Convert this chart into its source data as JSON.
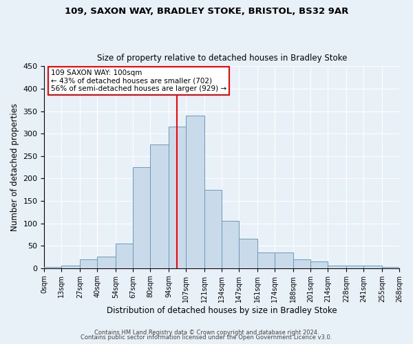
{
  "title1": "109, SAXON WAY, BRADLEY STOKE, BRISTOL, BS32 9AR",
  "title2": "Size of property relative to detached houses in Bradley Stoke",
  "xlabel": "Distribution of detached houses by size in Bradley Stoke",
  "ylabel": "Number of detached properties",
  "bar_color": "#c9daea",
  "bar_edge_color": "#6b9ab8",
  "bg_color": "#e8f0f8",
  "fig_bg_color": "#e8f0f8",
  "red_line_x": 100,
  "annotation_title": "109 SAXON WAY: 100sqm",
  "annotation_line1": "← 43% of detached houses are smaller (702)",
  "annotation_line2": "56% of semi-detached houses are larger (929) →",
  "bins": [
    0,
    13,
    27,
    40,
    54,
    67,
    80,
    94,
    107,
    121,
    134,
    147,
    161,
    174,
    188,
    201,
    214,
    228,
    241,
    255,
    268
  ],
  "bin_labels": [
    "0sqm",
    "13sqm",
    "27sqm",
    "40sqm",
    "54sqm",
    "67sqm",
    "80sqm",
    "94sqm",
    "107sqm",
    "121sqm",
    "134sqm",
    "147sqm",
    "161sqm",
    "174sqm",
    "188sqm",
    "201sqm",
    "214sqm",
    "228sqm",
    "241sqm",
    "255sqm",
    "268sqm"
  ],
  "counts": [
    2,
    5,
    20,
    25,
    55,
    225,
    275,
    315,
    340,
    175,
    105,
    65,
    35,
    35,
    20,
    15,
    5,
    5,
    5,
    2
  ],
  "ylim": [
    0,
    450
  ],
  "yticks": [
    0,
    50,
    100,
    150,
    200,
    250,
    300,
    350,
    400,
    450
  ],
  "footer1": "Contains HM Land Registry data © Crown copyright and database right 2024.",
  "footer2": "Contains public sector information licensed under the Open Government Licence v3.0."
}
